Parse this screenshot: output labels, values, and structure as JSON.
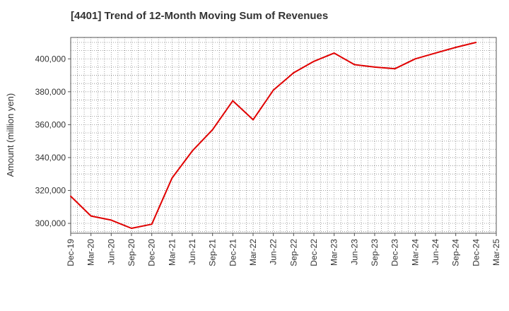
{
  "chart_data": {
    "type": "line",
    "title": "[4401]  Trend of 12-Month Moving Sum of Revenues",
    "xlabel": "",
    "ylabel": "Amount (million yen)",
    "ylim": [
      294000,
      413000
    ],
    "yticks": [
      300000,
      320000,
      340000,
      360000,
      380000,
      400000
    ],
    "ytick_labels": [
      "300,000",
      "320,000",
      "340,000",
      "360,000",
      "380,000",
      "400,000"
    ],
    "x_tick_labels": [
      "Dec-19",
      "Mar-20",
      "Jun-20",
      "Sep-20",
      "Dec-20",
      "Mar-21",
      "Jun-21",
      "Sep-21",
      "Dec-21",
      "Mar-22",
      "Jun-22",
      "Sep-22",
      "Dec-22",
      "Mar-23",
      "Jun-23",
      "Sep-23",
      "Dec-23",
      "Mar-24",
      "Jun-24",
      "Sep-24",
      "Dec-24",
      "Mar-25"
    ],
    "grid": true,
    "line_color": "#e00000",
    "series": [
      {
        "x": [
          "Dec-19",
          "Mar-20",
          "Jun-20",
          "Sep-20",
          "Dec-20",
          "Mar-21",
          "Jun-21",
          "Sep-21",
          "Dec-21",
          "Mar-22",
          "Jun-22",
          "Sep-22",
          "Dec-22",
          "Mar-23",
          "Jun-23",
          "Sep-23",
          "Dec-23",
          "Mar-24",
          "Jun-24",
          "Sep-24",
          "Dec-24"
        ],
        "values": [
          316500,
          304500,
          302000,
          297000,
          299500,
          327500,
          344000,
          357000,
          374500,
          363000,
          381000,
          391500,
          398500,
          403500,
          396500,
          395000,
          394000,
          400000,
          403500,
          407000,
          410000
        ]
      }
    ]
  }
}
